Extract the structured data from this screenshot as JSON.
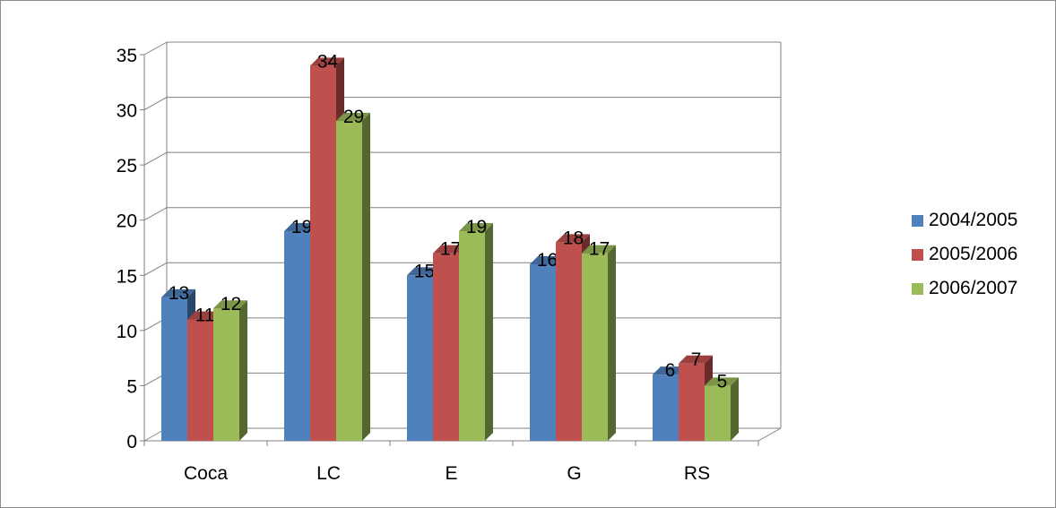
{
  "chart_data": {
    "type": "bar",
    "categories": [
      "Coca",
      "LC",
      "E",
      "G",
      "RS"
    ],
    "series": [
      {
        "name": "2004/2005",
        "values": [
          13,
          19,
          15,
          16,
          6
        ],
        "color": "#4f81bd"
      },
      {
        "name": "2005/2006",
        "values": [
          11,
          34,
          17,
          18,
          7
        ],
        "color": "#c0504d"
      },
      {
        "name": "2006/2007",
        "values": [
          12,
          29,
          19,
          17,
          5
        ],
        "color": "#9bbb59"
      }
    ],
    "ylim": [
      0,
      35
    ],
    "yticks": [
      0,
      5,
      10,
      15,
      20,
      25,
      30,
      35
    ],
    "grid": true,
    "legend_position": "right",
    "style": "3d-clustered-column"
  }
}
